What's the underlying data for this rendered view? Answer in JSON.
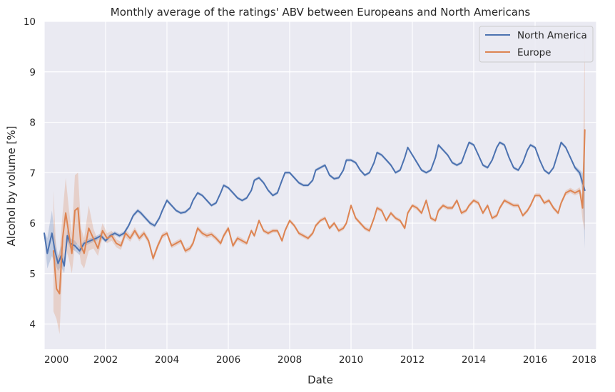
{
  "chart_data": {
    "type": "line",
    "title": "Monthly average of the ratings' ABV between Europeans and North Americans",
    "xlabel": "Date",
    "ylabel": "Alcohol by volume [%]",
    "xlim": [
      2000,
      2018
    ],
    "ylim": [
      3.5,
      10
    ],
    "xticks": [
      2000,
      2002,
      2004,
      2006,
      2008,
      2010,
      2012,
      2014,
      2016,
      2018
    ],
    "yticks": [
      4,
      5,
      6,
      7,
      8,
      9,
      10
    ],
    "grid": true,
    "legend": "top-right",
    "background": "#eaeaf2",
    "series": [
      {
        "name": "North America",
        "color": "#4c72b0",
        "x": [
          2000.0,
          2000.1,
          2000.25,
          2000.35,
          2000.45,
          2000.55,
          2000.65,
          2000.75,
          2000.85,
          2001.0,
          2001.15,
          2001.3,
          2001.5,
          2001.7,
          2001.85,
          2002.0,
          2002.15,
          2002.3,
          2002.45,
          2002.6,
          2002.75,
          2002.9,
          2003.05,
          2003.15,
          2003.3,
          2003.45,
          2003.6,
          2003.75,
          2003.85,
          2004.0,
          2004.15,
          2004.3,
          2004.45,
          2004.6,
          2004.75,
          2004.85,
          2005.0,
          2005.15,
          2005.3,
          2005.45,
          2005.6,
          2005.75,
          2005.85,
          2006.0,
          2006.15,
          2006.3,
          2006.45,
          2006.6,
          2006.75,
          2006.85,
          2007.0,
          2007.15,
          2007.3,
          2007.45,
          2007.6,
          2007.75,
          2007.85,
          2008.0,
          2008.15,
          2008.3,
          2008.45,
          2008.6,
          2008.75,
          2008.85,
          2009.0,
          2009.15,
          2009.3,
          2009.45,
          2009.6,
          2009.75,
          2009.85,
          2010.0,
          2010.15,
          2010.3,
          2010.45,
          2010.6,
          2010.75,
          2010.85,
          2011.0,
          2011.15,
          2011.3,
          2011.45,
          2011.6,
          2011.75,
          2011.85,
          2012.0,
          2012.15,
          2012.3,
          2012.45,
          2012.6,
          2012.75,
          2012.85,
          2013.0,
          2013.15,
          2013.3,
          2013.45,
          2013.6,
          2013.75,
          2013.85,
          2014.0,
          2014.15,
          2014.3,
          2014.45,
          2014.6,
          2014.75,
          2014.85,
          2015.0,
          2015.15,
          2015.3,
          2015.45,
          2015.6,
          2015.75,
          2015.85,
          2016.0,
          2016.15,
          2016.3,
          2016.45,
          2016.6,
          2016.75,
          2016.85,
          2017.0,
          2017.15,
          2017.3,
          2017.45,
          2017.55,
          2017.62
        ],
        "y": [
          5.8,
          5.4,
          5.8,
          5.45,
          5.2,
          5.35,
          5.15,
          5.75,
          5.6,
          5.55,
          5.45,
          5.6,
          5.65,
          5.7,
          5.75,
          5.65,
          5.75,
          5.8,
          5.75,
          5.8,
          5.95,
          6.15,
          6.25,
          6.2,
          6.1,
          6.0,
          5.95,
          6.1,
          6.25,
          6.45,
          6.35,
          6.25,
          6.2,
          6.22,
          6.3,
          6.45,
          6.6,
          6.55,
          6.45,
          6.35,
          6.4,
          6.6,
          6.75,
          6.7,
          6.6,
          6.5,
          6.45,
          6.5,
          6.65,
          6.85,
          6.9,
          6.8,
          6.65,
          6.55,
          6.6,
          6.85,
          7.0,
          7.0,
          6.9,
          6.8,
          6.75,
          6.75,
          6.85,
          7.05,
          7.1,
          7.15,
          6.95,
          6.88,
          6.9,
          7.05,
          7.25,
          7.25,
          7.2,
          7.05,
          6.95,
          7.0,
          7.2,
          7.4,
          7.35,
          7.25,
          7.15,
          7.0,
          7.05,
          7.3,
          7.5,
          7.35,
          7.2,
          7.05,
          7.0,
          7.05,
          7.3,
          7.55,
          7.45,
          7.35,
          7.2,
          7.15,
          7.2,
          7.45,
          7.6,
          7.55,
          7.35,
          7.15,
          7.1,
          7.25,
          7.5,
          7.6,
          7.55,
          7.3,
          7.1,
          7.05,
          7.2,
          7.45,
          7.55,
          7.5,
          7.25,
          7.05,
          6.98,
          7.1,
          7.4,
          7.6,
          7.5,
          7.3,
          7.1,
          7.0,
          6.8,
          6.65
        ],
        "band": [
          0.03,
          0.3,
          0.45,
          0.25,
          0.15,
          0.2,
          0.15,
          0.12,
          0.1,
          0.1,
          0.08,
          0.06,
          0.05,
          0.05,
          0.05,
          0.04,
          0.04,
          0.04,
          0.04,
          0.04,
          0.04,
          0.04,
          0.04,
          0.04,
          0.04,
          0.04,
          0.04,
          0.04,
          0.04,
          0.04,
          0.03,
          0.03,
          0.03,
          0.03,
          0.03,
          0.03,
          0.03,
          0.03,
          0.03,
          0.03,
          0.03,
          0.03,
          0.03,
          0.03,
          0.03,
          0.03,
          0.03,
          0.03,
          0.03,
          0.03,
          0.03,
          0.03,
          0.03,
          0.03,
          0.03,
          0.03,
          0.03,
          0.03,
          0.03,
          0.03,
          0.03,
          0.03,
          0.03,
          0.03,
          0.03,
          0.03,
          0.03,
          0.03,
          0.03,
          0.03,
          0.03,
          0.03,
          0.03,
          0.03,
          0.03,
          0.03,
          0.03,
          0.03,
          0.03,
          0.03,
          0.03,
          0.03,
          0.03,
          0.03,
          0.03,
          0.03,
          0.03,
          0.03,
          0.03,
          0.03,
          0.03,
          0.03,
          0.03,
          0.03,
          0.03,
          0.03,
          0.03,
          0.03,
          0.03,
          0.03,
          0.03,
          0.03,
          0.03,
          0.03,
          0.03,
          0.03,
          0.03,
          0.03,
          0.03,
          0.03,
          0.03,
          0.03,
          0.03,
          0.03,
          0.03,
          0.03,
          0.03,
          0.03,
          0.03,
          0.03,
          0.03,
          0.03,
          0.04,
          0.06,
          0.2,
          1.15
        ]
      },
      {
        "name": "Europe",
        "color": "#dd8452",
        "x": [
          2000.3,
          2000.4,
          2000.5,
          2000.6,
          2000.7,
          2000.8,
          2000.9,
          2001.0,
          2001.1,
          2001.2,
          2001.3,
          2001.45,
          2001.6,
          2001.75,
          2001.9,
          2002.05,
          2002.2,
          2002.35,
          2002.5,
          2002.65,
          2002.8,
          2002.95,
          2003.1,
          2003.25,
          2003.4,
          2003.55,
          2003.7,
          2003.85,
          2004.0,
          2004.15,
          2004.3,
          2004.45,
          2004.6,
          2004.75,
          2004.85,
          2005.0,
          2005.15,
          2005.3,
          2005.45,
          2005.6,
          2005.75,
          2005.85,
          2006.0,
          2006.15,
          2006.3,
          2006.45,
          2006.6,
          2006.75,
          2006.85,
          2007.0,
          2007.15,
          2007.3,
          2007.45,
          2007.6,
          2007.75,
          2007.85,
          2008.0,
          2008.15,
          2008.3,
          2008.45,
          2008.6,
          2008.75,
          2008.85,
          2009.0,
          2009.15,
          2009.3,
          2009.45,
          2009.6,
          2009.75,
          2009.85,
          2010.0,
          2010.15,
          2010.3,
          2010.45,
          2010.6,
          2010.75,
          2010.85,
          2011.0,
          2011.15,
          2011.3,
          2011.45,
          2011.6,
          2011.75,
          2011.85,
          2012.0,
          2012.15,
          2012.3,
          2012.45,
          2012.6,
          2012.75,
          2012.85,
          2013.0,
          2013.15,
          2013.3,
          2013.45,
          2013.6,
          2013.75,
          2013.85,
          2014.0,
          2014.15,
          2014.3,
          2014.45,
          2014.6,
          2014.75,
          2014.85,
          2015.0,
          2015.15,
          2015.3,
          2015.45,
          2015.6,
          2015.75,
          2015.85,
          2016.0,
          2016.15,
          2016.3,
          2016.45,
          2016.6,
          2016.75,
          2016.85,
          2017.0,
          2017.15,
          2017.3,
          2017.45,
          2017.55,
          2017.62
        ],
        "y": [
          5.45,
          4.7,
          4.6,
          5.7,
          6.2,
          5.8,
          5.4,
          6.25,
          6.3,
          5.55,
          5.4,
          5.9,
          5.7,
          5.5,
          5.85,
          5.7,
          5.75,
          5.6,
          5.55,
          5.8,
          5.7,
          5.85,
          5.7,
          5.8,
          5.65,
          5.3,
          5.55,
          5.75,
          5.8,
          5.55,
          5.6,
          5.65,
          5.45,
          5.5,
          5.6,
          5.9,
          5.8,
          5.75,
          5.78,
          5.7,
          5.6,
          5.75,
          5.9,
          5.55,
          5.7,
          5.65,
          5.6,
          5.85,
          5.75,
          6.05,
          5.85,
          5.8,
          5.85,
          5.85,
          5.65,
          5.85,
          6.05,
          5.95,
          5.8,
          5.75,
          5.7,
          5.8,
          5.95,
          6.05,
          6.1,
          5.9,
          6.0,
          5.85,
          5.9,
          6.0,
          6.35,
          6.1,
          6.0,
          5.9,
          5.85,
          6.1,
          6.3,
          6.25,
          6.05,
          6.2,
          6.1,
          6.05,
          5.9,
          6.2,
          6.35,
          6.3,
          6.2,
          6.45,
          6.1,
          6.05,
          6.25,
          6.35,
          6.3,
          6.3,
          6.45,
          6.2,
          6.25,
          6.35,
          6.45,
          6.4,
          6.2,
          6.35,
          6.1,
          6.15,
          6.3,
          6.45,
          6.4,
          6.35,
          6.35,
          6.15,
          6.25,
          6.35,
          6.55,
          6.55,
          6.4,
          6.45,
          6.3,
          6.2,
          6.4,
          6.6,
          6.65,
          6.6,
          6.65,
          6.3,
          7.85
        ],
        "band": [
          1.2,
          0.6,
          0.8,
          0.5,
          0.7,
          0.5,
          0.4,
          0.7,
          0.7,
          0.35,
          0.3,
          0.45,
          0.2,
          0.15,
          0.15,
          0.1,
          0.1,
          0.08,
          0.08,
          0.08,
          0.07,
          0.07,
          0.06,
          0.06,
          0.06,
          0.06,
          0.06,
          0.05,
          0.05,
          0.05,
          0.05,
          0.05,
          0.05,
          0.05,
          0.05,
          0.05,
          0.05,
          0.05,
          0.05,
          0.05,
          0.05,
          0.05,
          0.05,
          0.05,
          0.05,
          0.05,
          0.04,
          0.04,
          0.04,
          0.04,
          0.04,
          0.04,
          0.04,
          0.04,
          0.04,
          0.04,
          0.04,
          0.04,
          0.04,
          0.04,
          0.04,
          0.04,
          0.04,
          0.04,
          0.04,
          0.04,
          0.04,
          0.04,
          0.04,
          0.04,
          0.04,
          0.04,
          0.04,
          0.04,
          0.04,
          0.04,
          0.04,
          0.04,
          0.04,
          0.04,
          0.04,
          0.04,
          0.04,
          0.04,
          0.04,
          0.04,
          0.04,
          0.04,
          0.04,
          0.04,
          0.04,
          0.04,
          0.04,
          0.04,
          0.04,
          0.04,
          0.04,
          0.04,
          0.04,
          0.04,
          0.04,
          0.04,
          0.04,
          0.04,
          0.04,
          0.04,
          0.04,
          0.04,
          0.04,
          0.04,
          0.04,
          0.04,
          0.04,
          0.04,
          0.04,
          0.04,
          0.04,
          0.04,
          0.04,
          0.05,
          0.05,
          0.05,
          0.06,
          0.25,
          2.0
        ]
      }
    ]
  }
}
